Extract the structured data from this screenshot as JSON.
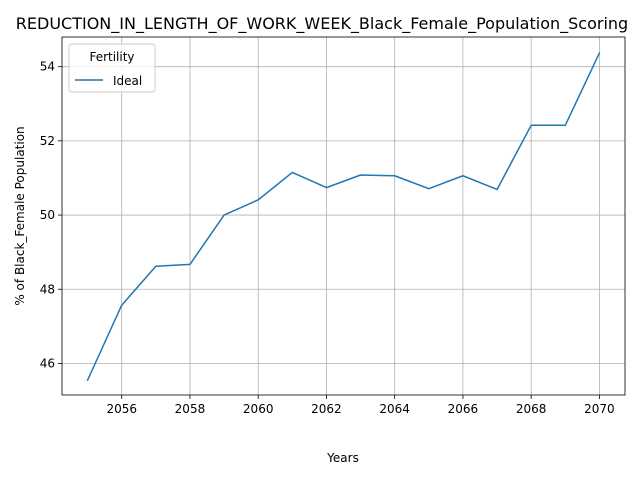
{
  "chart_data": {
    "type": "line",
    "title": "REDUCTION_IN_LENGTH_OF_WORK_WEEK_Black_Female_Population_Scoring",
    "xlabel": "Years",
    "ylabel": "% of Black_Female Population",
    "xlim": [
      2054.25,
      2070.75
    ],
    "ylim": [
      45.15,
      54.8
    ],
    "xticks": [
      2056,
      2058,
      2060,
      2062,
      2064,
      2066,
      2068,
      2070
    ],
    "yticks": [
      46,
      48,
      50,
      52,
      54
    ],
    "grid": true,
    "legend": {
      "title": "Fertility",
      "placement": "top-left"
    },
    "color": "#1f77b4",
    "x": [
      2055,
      2056,
      2057,
      2058,
      2059,
      2060,
      2061,
      2062,
      2063,
      2064,
      2065,
      2066,
      2067,
      2068,
      2069,
      2070
    ],
    "series": [
      {
        "name": "Ideal",
        "values": [
          45.55,
          47.57,
          48.62,
          48.67,
          50.0,
          50.41,
          51.15,
          50.74,
          51.08,
          51.06,
          50.71,
          51.06,
          50.69,
          52.42,
          52.42,
          54.37
        ]
      }
    ]
  }
}
